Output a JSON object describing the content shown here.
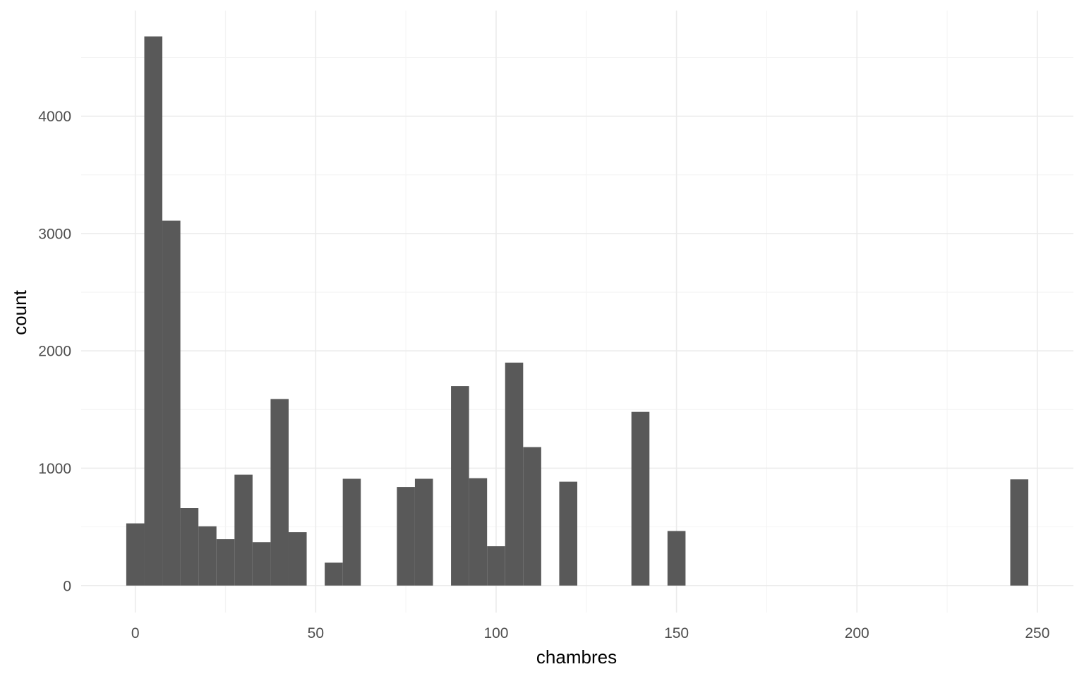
{
  "chart_data": {
    "type": "bar",
    "title": "",
    "xlabel": "chambres",
    "ylabel": "count",
    "bar_color": "#595959",
    "grid": true,
    "bin_width": 5,
    "xlim": [
      -15,
      260
    ],
    "ylim": [
      -230,
      4900
    ],
    "x_ticks": [
      0,
      50,
      100,
      150,
      200,
      250
    ],
    "x_minor_ticks": [
      25,
      75,
      125,
      175,
      225
    ],
    "y_ticks": [
      0,
      1000,
      2000,
      3000,
      4000
    ],
    "y_minor_ticks": [
      500,
      1500,
      2500,
      3500,
      4500
    ],
    "bins": [
      {
        "start": -2.5,
        "end": 2.5,
        "count": 530
      },
      {
        "start": 2.5,
        "end": 7.5,
        "count": 4680
      },
      {
        "start": 7.5,
        "end": 12.5,
        "count": 3110
      },
      {
        "start": 12.5,
        "end": 17.5,
        "count": 660
      },
      {
        "start": 17.5,
        "end": 22.5,
        "count": 505
      },
      {
        "start": 22.5,
        "end": 27.5,
        "count": 395
      },
      {
        "start": 27.5,
        "end": 32.5,
        "count": 945
      },
      {
        "start": 32.5,
        "end": 37.5,
        "count": 370
      },
      {
        "start": 37.5,
        "end": 42.5,
        "count": 1590
      },
      {
        "start": 42.5,
        "end": 47.5,
        "count": 455
      },
      {
        "start": 52.5,
        "end": 57.5,
        "count": 195
      },
      {
        "start": 57.5,
        "end": 62.5,
        "count": 910
      },
      {
        "start": 72.5,
        "end": 77.5,
        "count": 840
      },
      {
        "start": 77.5,
        "end": 82.5,
        "count": 910
      },
      {
        "start": 87.5,
        "end": 92.5,
        "count": 1700
      },
      {
        "start": 92.5,
        "end": 97.5,
        "count": 915
      },
      {
        "start": 97.5,
        "end": 102.5,
        "count": 335
      },
      {
        "start": 102.5,
        "end": 107.5,
        "count": 1900
      },
      {
        "start": 107.5,
        "end": 112.5,
        "count": 1180
      },
      {
        "start": 117.5,
        "end": 122.5,
        "count": 885
      },
      {
        "start": 137.5,
        "end": 142.5,
        "count": 1480
      },
      {
        "start": 147.5,
        "end": 152.5,
        "count": 465
      },
      {
        "start": 242.5,
        "end": 247.5,
        "count": 905
      }
    ]
  }
}
